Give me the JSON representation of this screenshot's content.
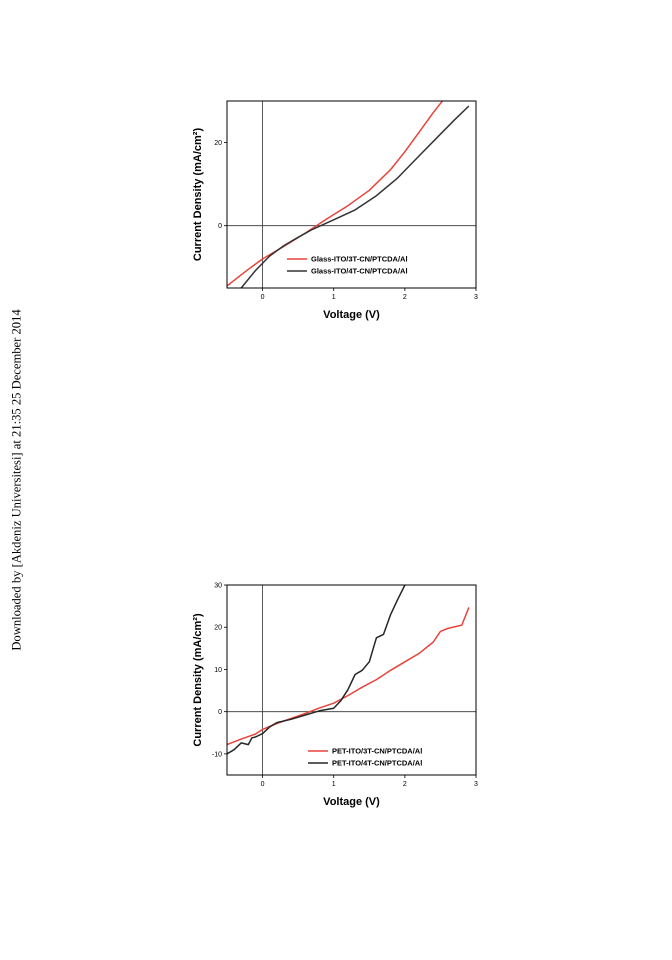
{
  "side_note": "Downloaded by [Akdeniz Universitesi] at 21:35 25 December 2014",
  "chart_data": [
    {
      "type": "line",
      "xlabel": "Voltage (V)",
      "ylabel": "Current Density (mA/cm²)",
      "xlim": [
        -0.5,
        3
      ],
      "ylim": [
        -15,
        30
      ],
      "xticks": [
        0,
        1,
        2,
        3
      ],
      "yticks": [
        0,
        20
      ],
      "grid": false,
      "reference_lines": {
        "x": 0,
        "y": 0
      },
      "legend_position": "bottom-right",
      "series": [
        {
          "name": "Glass-ITO/3T-CN/PTCDA/Al",
          "color": "#e8433a",
          "x": [
            -0.5,
            -0.2,
            0,
            0.3,
            0.6,
            0.9,
            1.2,
            1.5,
            1.8,
            2.0,
            2.2,
            2.4,
            2.55
          ],
          "y": [
            -14.5,
            -10.5,
            -8.0,
            -5.0,
            -1.8,
            1.6,
            4.8,
            8.5,
            13.5,
            17.8,
            22.5,
            27.2,
            30.5
          ]
        },
        {
          "name": "Glass-ITO/4T-CN/PTCDA/Al",
          "color": "#333333",
          "x": [
            -0.3,
            -0.1,
            0.1,
            0.3,
            0.5,
            0.7,
            1.0,
            1.3,
            1.6,
            1.9,
            2.2,
            2.5,
            2.7,
            2.9
          ],
          "y": [
            -15,
            -10.8,
            -7.3,
            -4.8,
            -2.8,
            -0.9,
            1.4,
            3.8,
            7.2,
            11.5,
            16.8,
            22.0,
            25.5,
            28.8
          ]
        }
      ]
    },
    {
      "type": "line",
      "xlabel": "Voltage (V)",
      "ylabel": "Current Density (mA/cm²)",
      "xlim": [
        -0.5,
        3
      ],
      "ylim": [
        -15,
        30
      ],
      "xticks": [
        0,
        1,
        2,
        3
      ],
      "yticks": [
        -10,
        0,
        10,
        20,
        30
      ],
      "grid": false,
      "reference_lines": {
        "x": 0,
        "y": 0
      },
      "legend_position": "bottom-right",
      "series": [
        {
          "name": "PET-ITO/3T-CN/PTCDA/Al",
          "color": "#e8433a",
          "x": [
            -0.5,
            -0.3,
            -0.1,
            0,
            0.2,
            0.4,
            0.6,
            0.8,
            1.0,
            1.2,
            1.4,
            1.6,
            1.8,
            2.0,
            2.2,
            2.4,
            2.5,
            2.6,
            2.8,
            2.9
          ],
          "y": [
            -7.8,
            -6.5,
            -5.3,
            -4.2,
            -2.8,
            -1.6,
            -0.4,
            0.9,
            2.0,
            3.8,
            5.8,
            7.6,
            9.8,
            11.8,
            13.8,
            16.5,
            19.0,
            19.7,
            20.5,
            24.7
          ]
        },
        {
          "name": "PET-ITO/4T-CN/PTCDA/Al",
          "color": "#262626",
          "x": [
            -0.5,
            -0.4,
            -0.3,
            -0.2,
            -0.15,
            -0.1,
            0,
            0.1,
            0.2,
            0.4,
            0.6,
            0.8,
            1.0,
            1.1,
            1.2,
            1.3,
            1.4,
            1.5,
            1.6,
            1.7,
            1.8,
            1.9,
            2.0
          ],
          "y": [
            -10.0,
            -9.0,
            -7.4,
            -7.8,
            -6.2,
            -6.0,
            -5.2,
            -3.6,
            -2.6,
            -1.8,
            -0.8,
            0.2,
            0.8,
            2.6,
            5.2,
            8.8,
            9.8,
            11.8,
            17.5,
            18.3,
            23.0,
            26.6,
            30.0
          ]
        }
      ]
    }
  ]
}
